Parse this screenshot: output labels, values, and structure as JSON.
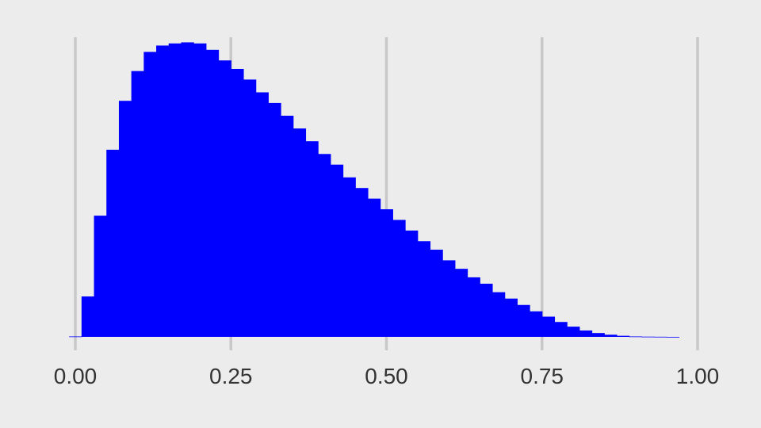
{
  "chart_data": {
    "type": "bar",
    "subtype": "histogram",
    "title": "",
    "xlabel": "",
    "ylabel": "",
    "xlim": [
      -0.02,
      1.0
    ],
    "ylim": [
      0,
      0.0145
    ],
    "bin_width": 0.02,
    "bin_starts": [
      -0.01,
      0.01,
      0.03,
      0.05,
      0.07,
      0.09,
      0.11,
      0.13,
      0.15,
      0.17,
      0.19,
      0.21,
      0.23,
      0.25,
      0.27,
      0.29,
      0.31,
      0.33,
      0.35,
      0.37,
      0.39,
      0.41,
      0.43,
      0.45,
      0.47,
      0.49,
      0.51,
      0.53,
      0.55,
      0.57,
      0.59,
      0.61,
      0.63,
      0.65,
      0.67,
      0.69,
      0.71,
      0.73,
      0.75,
      0.77,
      0.79,
      0.81,
      0.83,
      0.85,
      0.87,
      0.89,
      0.91,
      0.93,
      0.95
    ],
    "values": [
      2e-05,
      0.0019,
      0.0057,
      0.0088,
      0.0111,
      0.0125,
      0.0134,
      0.0137,
      0.0138,
      0.01385,
      0.0138,
      0.0135,
      0.013,
      0.0126,
      0.0121,
      0.0115,
      0.011,
      0.0104,
      0.0098,
      0.0092,
      0.0086,
      0.0081,
      0.0075,
      0.007,
      0.0065,
      0.006,
      0.0055,
      0.005,
      0.0045,
      0.0041,
      0.0036,
      0.0032,
      0.0028,
      0.0025,
      0.0021,
      0.0018,
      0.0015,
      0.0012,
      0.00095,
      0.0007,
      0.00048,
      0.0003,
      0.00018,
      0.0001,
      5e-05,
      2e-05,
      1e-05,
      5e-06,
      0.0
    ],
    "x_ticks": [
      0.0,
      0.25,
      0.5,
      0.75,
      1.0
    ],
    "x_tick_labels": [
      "0.00",
      "0.25",
      "0.50",
      "0.75",
      "1.00"
    ],
    "grid": {
      "vertical": true,
      "horizontal": false
    },
    "colors": {
      "bar": "#0000ff",
      "background": "#ececec",
      "grid": "#c8c8c8",
      "tick_text": "#333333"
    }
  }
}
